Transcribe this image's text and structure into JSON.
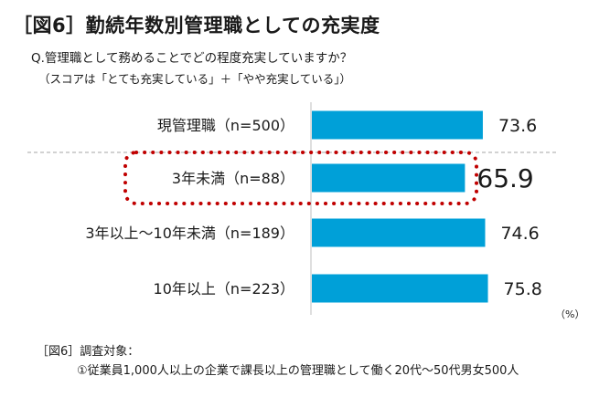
{
  "header": {
    "title": "［図6］勤続年数別管理職としての充実度",
    "question": "Q.管理職として務めることでどの程度充実していますか？",
    "score_note": "（スコアは「とても充実している」＋「やや充実している」）"
  },
  "chart_data": {
    "type": "bar",
    "orientation": "horizontal",
    "categories": [
      "現管理職（n=500）",
      "3年未満（n=88）",
      "3年以上～10年未満（n=189）",
      "10年以上（n=223）"
    ],
    "values": [
      73.6,
      65.9,
      74.6,
      75.8
    ],
    "value_labels": [
      "73.6",
      "65.9",
      "74.6",
      "75.8"
    ],
    "unit": "（%）",
    "highlight_index": 1,
    "bar_color": "#00A0D8",
    "highlight_border_color": "#C00000",
    "grid": false
  },
  "footnote": {
    "heading": "［図6］調査対象：",
    "body": "①従業員1,000人以上の企業で課長以上の管理職として働く20代～50代男女500人"
  }
}
